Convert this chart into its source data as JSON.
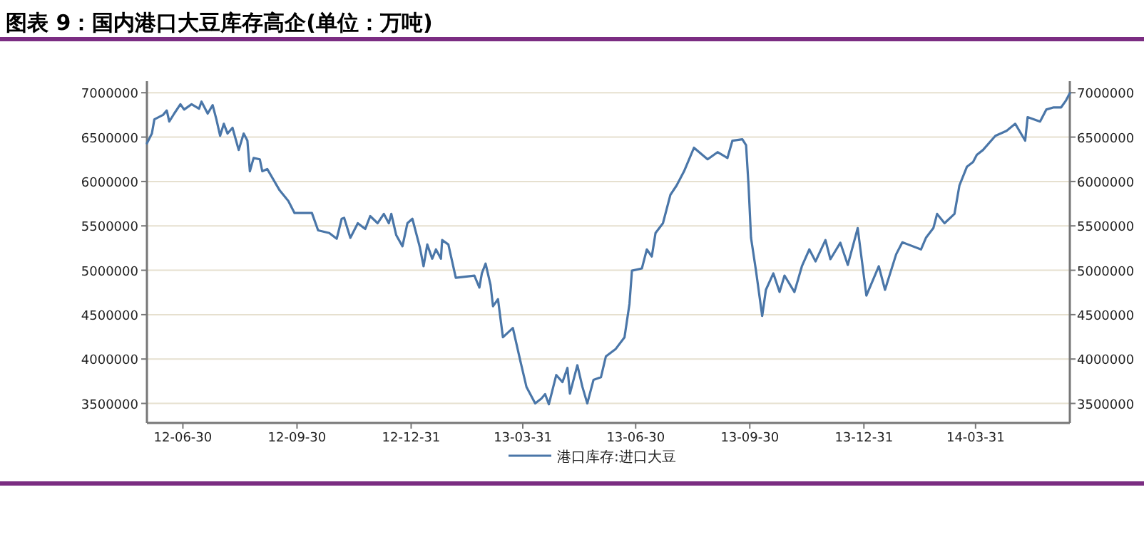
{
  "chart_data": {
    "type": "line",
    "title": "图表 9：国内港口大豆库存高企(单位：万吨)",
    "x": [
      "2012-06-01",
      "2012-06-05",
      "2012-06-07",
      "2012-06-14",
      "2012-06-17",
      "2012-06-19",
      "2012-06-23",
      "2012-06-28",
      "2012-07-01",
      "2012-07-07",
      "2012-07-13",
      "2012-07-15",
      "2012-07-20",
      "2012-07-24",
      "2012-07-27",
      "2012-07-30",
      "2012-08-02",
      "2012-08-05",
      "2012-08-09",
      "2012-08-14",
      "2012-08-18",
      "2012-08-21",
      "2012-08-23",
      "2012-08-26",
      "2012-08-31",
      "2012-09-02",
      "2012-09-06",
      "2012-09-16",
      "2012-09-23",
      "2012-09-28",
      "2012-10-12",
      "2012-10-17",
      "2012-10-26",
      "2012-11-01",
      "2012-11-05",
      "2012-11-07",
      "2012-11-12",
      "2012-11-18",
      "2012-11-24",
      "2012-11-28",
      "2012-12-04",
      "2012-12-09",
      "2012-12-13",
      "2012-12-15",
      "2012-12-19",
      "2012-12-24",
      "2012-12-28",
      "2013-01-01",
      "2013-01-07",
      "2013-01-10",
      "2013-01-13",
      "2013-01-17",
      "2013-01-20",
      "2013-01-24",
      "2013-01-25",
      "2013-01-30",
      "2013-02-05",
      "2013-02-20",
      "2013-02-24",
      "2013-02-26",
      "2013-03-01",
      "2013-03-05",
      "2013-03-07",
      "2013-03-11",
      "2013-03-15",
      "2013-03-23",
      "2013-03-29",
      "2013-04-03",
      "2013-04-10",
      "2013-04-15",
      "2013-04-18",
      "2013-04-21",
      "2013-04-27",
      "2013-05-02",
      "2013-05-06",
      "2013-05-08",
      "2013-05-14",
      "2013-05-18",
      "2013-05-22",
      "2013-05-27",
      "2013-06-02",
      "2013-06-06",
      "2013-06-14",
      "2013-06-21",
      "2013-06-25",
      "2013-06-27",
      "2013-07-05",
      "2013-07-09",
      "2013-07-13",
      "2013-07-16",
      "2013-07-22",
      "2013-07-28",
      "2013-08-02",
      "2013-08-08",
      "2013-08-16",
      "2013-08-27",
      "2013-09-04",
      "2013-09-12",
      "2013-09-16",
      "2013-09-24",
      "2013-09-27",
      "2013-09-29",
      "2013-10-01",
      "2013-10-05",
      "2013-10-10",
      "2013-10-13",
      "2013-10-19",
      "2013-10-24",
      "2013-10-28",
      "2013-11-05",
      "2013-11-11",
      "2013-11-17",
      "2013-11-22",
      "2013-11-30",
      "2013-12-04",
      "2013-12-12",
      "2013-12-18",
      "2013-12-26",
      "2014-01-02",
      "2014-01-12",
      "2014-01-17",
      "2014-01-26",
      "2014-01-31",
      "2014-02-15",
      "2014-02-19",
      "2014-02-25",
      "2014-02-28",
      "2014-03-06",
      "2014-03-14",
      "2014-03-18",
      "2014-03-24",
      "2014-03-29",
      "2014-04-01",
      "2014-04-06",
      "2014-04-16",
      "2014-04-25",
      "2014-05-02",
      "2014-05-10",
      "2014-05-12",
      "2014-05-22",
      "2014-05-27",
      "2014-06-02",
      "2014-06-08",
      "2014-06-12",
      "2014-06-15"
    ],
    "series": [
      {
        "name": "港口库存:进口大豆",
        "color": "#4a76a8",
        "values": [
          6430000,
          6540000,
          6700000,
          6750000,
          6800000,
          6675000,
          6765000,
          6870000,
          6810000,
          6870000,
          6820000,
          6900000,
          6765000,
          6860000,
          6700000,
          6515000,
          6650000,
          6540000,
          6605000,
          6355000,
          6540000,
          6460000,
          6115000,
          6265000,
          6250000,
          6115000,
          6140000,
          5900000,
          5780000,
          5645000,
          5645000,
          5450000,
          5420000,
          5355000,
          5580000,
          5590000,
          5365000,
          5530000,
          5465000,
          5610000,
          5530000,
          5635000,
          5530000,
          5635000,
          5395000,
          5270000,
          5530000,
          5580000,
          5260000,
          5045000,
          5290000,
          5130000,
          5235000,
          5130000,
          5340000,
          5290000,
          4915000,
          4940000,
          4805000,
          4965000,
          5075000,
          4835000,
          4595000,
          4675000,
          4245000,
          4350000,
          3980000,
          3685000,
          3500000,
          3555000,
          3605000,
          3490000,
          3820000,
          3740000,
          3900000,
          3610000,
          3930000,
          3690000,
          3500000,
          3765000,
          3795000,
          4030000,
          4115000,
          4245000,
          4620000,
          4995000,
          5020000,
          5235000,
          5155000,
          5420000,
          5530000,
          5850000,
          5955000,
          6115000,
          6380000,
          6250000,
          6330000,
          6265000,
          6460000,
          6475000,
          6410000,
          5955000,
          5365000,
          4995000,
          4485000,
          4780000,
          4965000,
          4755000,
          4940000,
          4755000,
          5045000,
          5235000,
          5100000,
          5340000,
          5125000,
          5310000,
          5060000,
          5475000,
          4715000,
          5045000,
          4780000,
          5180000,
          5315000,
          5235000,
          5365000,
          5475000,
          5635000,
          5530000,
          5635000,
          5955000,
          6165000,
          6220000,
          6300000,
          6355000,
          6515000,
          6570000,
          6650000,
          6460000,
          6725000,
          6675000,
          6810000,
          6835000,
          6835000,
          6915000,
          6995000
        ]
      }
    ],
    "xlim": [
      "2012-06-01",
      "2014-06-15"
    ],
    "xticks": [
      {
        "value": "2012-06-30",
        "label": "12-06-30"
      },
      {
        "value": "2012-09-30",
        "label": "12-09-30"
      },
      {
        "value": "2012-12-31",
        "label": "12-12-31"
      },
      {
        "value": "2013-03-31",
        "label": "13-03-31"
      },
      {
        "value": "2013-06-30",
        "label": "13-06-30"
      },
      {
        "value": "2013-09-30",
        "label": "13-09-30"
      },
      {
        "value": "2013-12-31",
        "label": "13-12-31"
      },
      {
        "value": "2014-03-31",
        "label": "14-03-31"
      }
    ],
    "ylim": [
      3280000,
      7130000
    ],
    "yticks": [
      3500000,
      4000000,
      4500000,
      5000000,
      5500000,
      6000000,
      6500000,
      7000000
    ],
    "y2lim": [
      3280000,
      7130000
    ],
    "y2ticks": [
      3500000,
      4000000,
      4500000,
      5000000,
      5500000,
      6000000,
      6500000,
      7000000
    ],
    "grid": "y",
    "legend": "bottom"
  }
}
